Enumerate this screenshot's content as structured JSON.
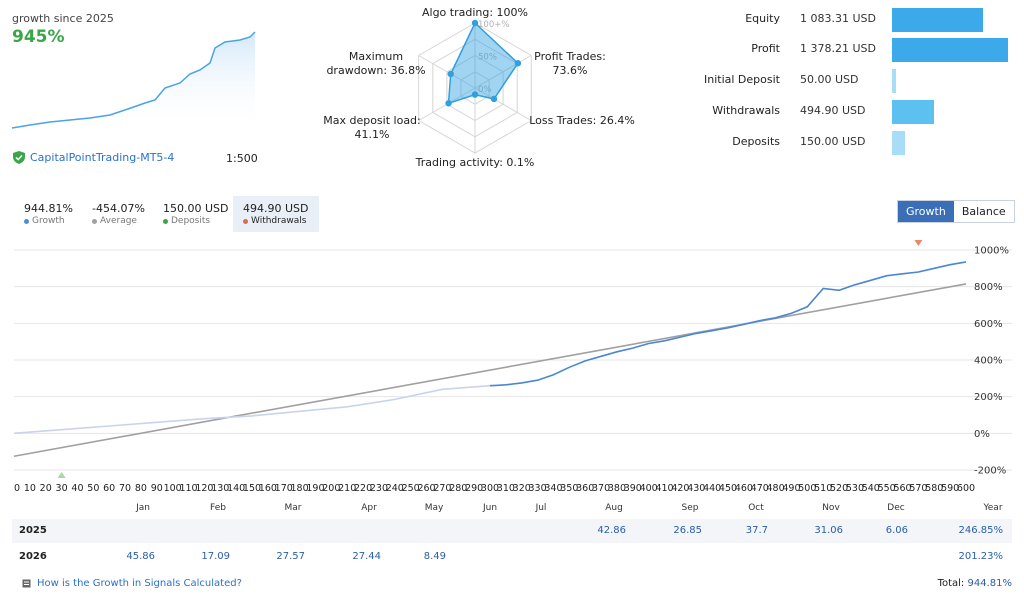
{
  "summary": {
    "caption": "growth since 2025",
    "growth": "945%",
    "account_name": "CapitalPointTrading-MT5-4",
    "leverage": "1:500"
  },
  "radar": {
    "axes": [
      {
        "label_lines": [
          "Algo trading: 100%"
        ],
        "value": 1.0
      },
      {
        "label_lines": [
          "Profit Trades:",
          "73.6%"
        ],
        "value": 0.736
      },
      {
        "label_lines": [
          "Loss Trades: 26.4%"
        ],
        "value": 0.264
      },
      {
        "label_lines": [
          "Trading activity: 0.1%"
        ],
        "value": 0.001
      },
      {
        "label_lines": [
          "Max deposit load:",
          "41.1%"
        ],
        "value": 0.411
      },
      {
        "label_lines": [
          "Maximum",
          "drawdown: 36.8%"
        ],
        "value": 0.368
      }
    ],
    "ring_labels": [
      "100+%",
      "50%",
      "0%"
    ]
  },
  "financials": [
    {
      "label": "Equity",
      "value": "1 083.31 USD",
      "amount": 1083.31,
      "color": "#3ba9ea"
    },
    {
      "label": "Profit",
      "value": "1 378.21 USD",
      "amount": 1378.21,
      "color": "#3ba9ea"
    },
    {
      "label": "Initial Deposit",
      "value": "50.00 USD",
      "amount": 50.0,
      "color": "#a8dcf7"
    },
    {
      "label": "Withdrawals",
      "value": "494.90 USD",
      "amount": 494.9,
      "color": "#5cc1f0"
    },
    {
      "label": "Deposits",
      "value": "150.00 USD",
      "amount": 150.0,
      "color": "#a8dcf7"
    }
  ],
  "stats": [
    {
      "value": "944.81%",
      "label": "Growth",
      "color": "#4a90d9"
    },
    {
      "value": "-454.07%",
      "label": "Average",
      "color": "#a0a0a0"
    },
    {
      "value": "150.00 USD",
      "label": "Deposits",
      "color": "#3aa64a"
    },
    {
      "value": "494.90 USD",
      "label": "Withdrawals",
      "color": "#e06a4a"
    }
  ],
  "toggle": {
    "growth": "Growth",
    "balance": "Balance"
  },
  "chart_data": {
    "type": "line",
    "ylim": [
      -200,
      1000
    ],
    "yticks": [
      "1000%",
      "800%",
      "600%",
      "400%",
      "200%",
      "0%",
      "-200%"
    ],
    "xlim": [
      0,
      600
    ],
    "xtick_labels": [
      "0",
      "10",
      "20",
      "30",
      "40",
      "50",
      "60",
      "70",
      "80",
      "90",
      "100",
      "110",
      "120",
      "130",
      "140",
      "150",
      "160",
      "170",
      "180",
      "190",
      "200",
      "210",
      "220",
      "230",
      "240",
      "250",
      "260",
      "270",
      "280",
      "290",
      "300",
      "310",
      "320",
      "330",
      "340",
      "350",
      "360",
      "370",
      "380",
      "390",
      "400",
      "410",
      "420",
      "430",
      "440",
      "450",
      "460",
      "470",
      "480",
      "490",
      "500",
      "510",
      "520",
      "530",
      "540",
      "550",
      "560",
      "570",
      "580",
      "590",
      "600"
    ],
    "series": [
      {
        "values_x": [
          0,
          30,
          60,
          90,
          120,
          150,
          180,
          210,
          240,
          270,
          300,
          305,
          310,
          320,
          330,
          340,
          350,
          360,
          370,
          380,
          390,
          400,
          410,
          420,
          430,
          440,
          450,
          460,
          470,
          480,
          490,
          500,
          510,
          520,
          530,
          540,
          550,
          560,
          570,
          580,
          590,
          600
        ],
        "values_y": [
          0,
          20,
          40,
          60,
          80,
          95,
          120,
          145,
          185,
          240,
          260,
          262,
          265,
          275,
          290,
          320,
          360,
          395,
          420,
          445,
          465,
          490,
          505,
          525,
          545,
          560,
          575,
          595,
          615,
          630,
          655,
          690,
          790,
          780,
          810,
          835,
          860,
          870,
          880,
          900,
          920,
          935
        ]
      },
      {
        "values_x": [
          0,
          600
        ],
        "values_y": [
          -125,
          815
        ]
      }
    ],
    "markers": [
      {
        "x": 30,
        "y": -200,
        "kind": "deposit"
      },
      {
        "x": 570,
        "y": 1000,
        "kind": "withdrawal"
      }
    ]
  },
  "monthly": {
    "months": [
      "Jan",
      "Feb",
      "Mar",
      "Apr",
      "May",
      "Jun",
      "Jul",
      "Aug",
      "Sep",
      "Oct",
      "Nov",
      "Dec",
      "Year"
    ],
    "rows": [
      {
        "year": "2025",
        "cells": [
          "",
          "",
          "",
          "",
          "",
          "",
          "",
          "42.86",
          "26.85",
          "37.7",
          "31.06",
          "6.06",
          "246.85%"
        ]
      },
      {
        "year": "2026",
        "cells": [
          "45.86",
          "17.09",
          "27.57",
          "27.44",
          "8.49",
          "",
          "",
          "",
          "",
          "",
          "",
          "",
          "201.23%"
        ]
      }
    ]
  },
  "footer": {
    "link": "How is the Growth in Signals Calculated?",
    "total_label": "Total:",
    "total_value": "944.81%"
  }
}
